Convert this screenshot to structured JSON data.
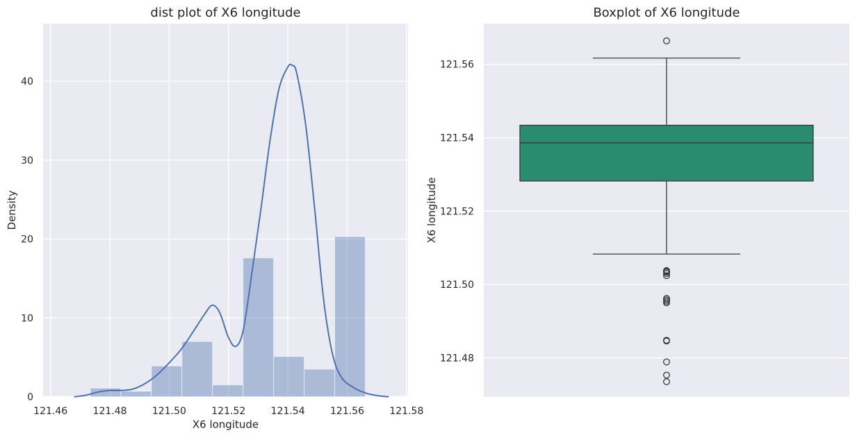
{
  "chart_data": [
    {
      "type": "histogram+kde",
      "title": "dist plot of X6 longitude",
      "xlabel": "X6 longitude",
      "ylabel": "Density",
      "xlim": [
        121.4575,
        121.5805
      ],
      "ylim": [
        0,
        47.3
      ],
      "xticks": [
        "121.46",
        "121.48",
        "121.50",
        "121.52",
        "121.54",
        "121.56",
        "121.58"
      ],
      "xtick_values": [
        121.46,
        121.48,
        121.5,
        121.52,
        121.54,
        121.56,
        121.58
      ],
      "yticks": [
        "0",
        "10",
        "20",
        "30",
        "40"
      ],
      "ytick_values": [
        0,
        10,
        20,
        30,
        40
      ],
      "grid": true,
      "bar_color": "#4c72b0",
      "bar_alpha": 0.4,
      "bins": [
        {
          "x0": 121.4734,
          "x1": 121.4837,
          "value": 1.1
        },
        {
          "x0": 121.4837,
          "x1": 121.494,
          "value": 0.7
        },
        {
          "x0": 121.494,
          "x1": 121.5043,
          "value": 3.9
        },
        {
          "x0": 121.5043,
          "x1": 121.5146,
          "value": 7.0
        },
        {
          "x0": 121.5146,
          "x1": 121.5249,
          "value": 1.5
        },
        {
          "x0": 121.5249,
          "x1": 121.5352,
          "value": 17.6
        },
        {
          "x0": 121.5352,
          "x1": 121.5455,
          "value": 5.1
        },
        {
          "x0": 121.5455,
          "x1": 121.5558,
          "value": 3.5
        },
        {
          "x0": 121.5558,
          "x1": 121.5661,
          "value": 20.3
        }
      ],
      "kde": {
        "color": "#4c72b0",
        "x": [
          121.468,
          121.472,
          121.476,
          121.48,
          121.484,
          121.488,
          121.492,
          121.496,
          121.5,
          121.504,
          121.508,
          121.512,
          121.5145,
          121.517,
          121.52,
          121.5225,
          121.525,
          121.528,
          121.531,
          121.534,
          121.537,
          121.54,
          121.5415,
          121.543,
          121.546,
          121.549,
          121.552,
          121.555,
          121.558,
          121.562,
          121.566,
          121.57,
          121.574
        ],
        "y": [
          0.0,
          0.2,
          0.6,
          0.8,
          0.8,
          1.0,
          1.7,
          2.8,
          4.3,
          6.0,
          8.2,
          10.5,
          11.6,
          10.7,
          7.5,
          6.4,
          8.5,
          16.0,
          24.0,
          32.5,
          39.0,
          41.8,
          42.0,
          41.0,
          34.5,
          24.0,
          12.5,
          5.5,
          2.5,
          1.2,
          0.5,
          0.15,
          0.0
        ]
      }
    },
    {
      "type": "boxplot",
      "title": "Boxplot of X6 longitude",
      "ylabel": "X6 longitude",
      "ylim": [
        121.4694,
        121.5711
      ],
      "yticks": [
        "121.48",
        "121.50",
        "121.52",
        "121.54",
        "121.56"
      ],
      "ytick_values": [
        121.48,
        121.5,
        121.52,
        121.54,
        121.56
      ],
      "grid": true,
      "box_color": "#2a8c6e",
      "q1": 121.5282,
      "median": 121.5386,
      "q3": 121.5434,
      "whisker_low": 121.5083,
      "whisker_high": 121.5617,
      "outliers": [
        121.5664,
        121.5038,
        121.5036,
        121.5034,
        121.503,
        121.5024,
        121.4962,
        121.4958,
        121.4954,
        121.495,
        121.4848,
        121.4846,
        121.4789,
        121.4753,
        121.4735
      ]
    }
  ]
}
